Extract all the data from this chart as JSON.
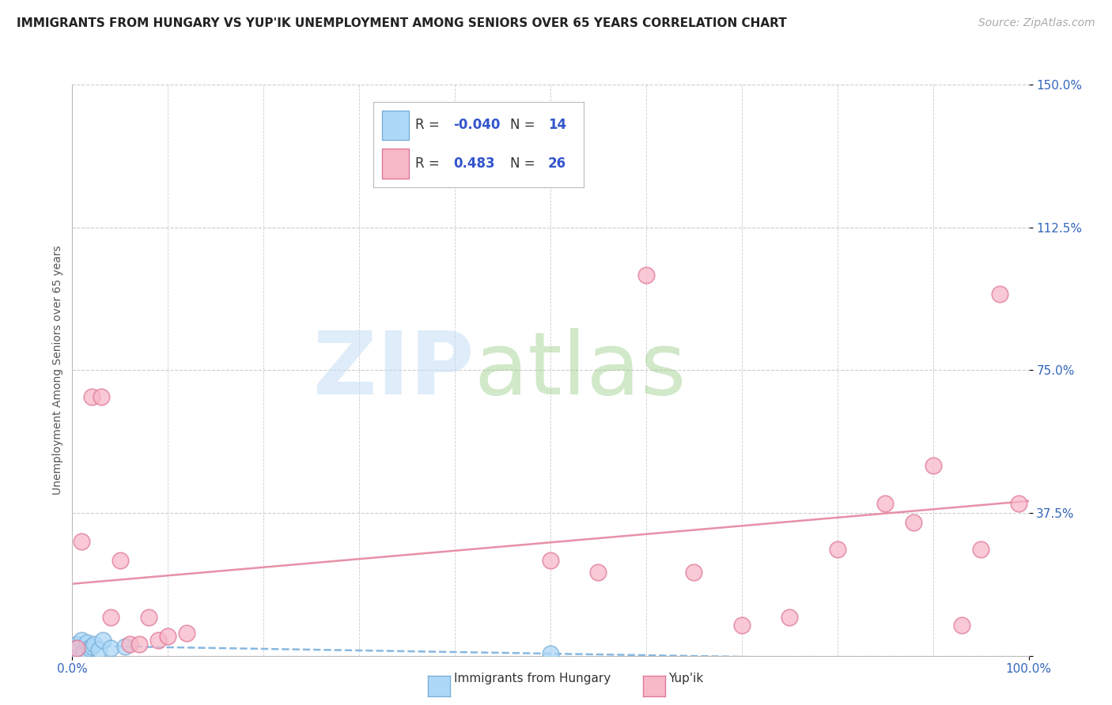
{
  "title": "IMMIGRANTS FROM HUNGARY VS YUP'IK UNEMPLOYMENT AMONG SENIORS OVER 65 YEARS CORRELATION CHART",
  "source_text": "Source: ZipAtlas.com",
  "ylabel": "Unemployment Among Seniors over 65 years",
  "xlim": [
    0,
    100
  ],
  "ylim": [
    0,
    150
  ],
  "yticks": [
    0,
    37.5,
    75.0,
    112.5,
    150.0
  ],
  "yticklabels": [
    "",
    "37.5%",
    "75.0%",
    "112.5%",
    "150.0%"
  ],
  "blue_R": -0.04,
  "blue_N": 14,
  "pink_R": 0.483,
  "pink_N": 26,
  "blue_face": "#add8f7",
  "blue_edge": "#7ab0d8",
  "pink_face": "#f7b8c8",
  "pink_edge": "#e07898",
  "blue_line_color": "#88b8e0",
  "pink_line_color": "#e890a8",
  "blue_x": [
    0.3,
    0.5,
    0.7,
    1.0,
    1.2,
    1.5,
    1.8,
    2.0,
    2.3,
    2.8,
    3.2,
    4.0,
    5.5,
    50.0
  ],
  "blue_y": [
    1.5,
    3.0,
    2.5,
    4.0,
    1.0,
    3.5,
    2.0,
    2.5,
    3.0,
    1.5,
    4.0,
    2.0,
    2.5,
    0.5
  ],
  "pink_x": [
    0.5,
    1.0,
    2.0,
    3.0,
    4.0,
    5.0,
    6.0,
    7.0,
    8.0,
    9.0,
    10.0,
    12.0,
    50.0,
    55.0,
    60.0,
    65.0,
    70.0,
    75.0,
    80.0,
    85.0,
    88.0,
    90.0,
    93.0,
    95.0,
    97.0,
    99.0
  ],
  "pink_y": [
    2.0,
    30.0,
    68.0,
    68.0,
    10.0,
    25.0,
    3.0,
    3.0,
    10.0,
    4.0,
    5.0,
    6.0,
    25.0,
    22.0,
    100.0,
    22.0,
    8.0,
    10.0,
    28.0,
    40.0,
    35.0,
    50.0,
    8.0,
    28.0,
    95.0,
    40.0
  ],
  "title_fontsize": 11,
  "source_fontsize": 10,
  "ylabel_fontsize": 10,
  "tick_fontsize": 11,
  "legend_fontsize": 12,
  "watermark_fontsize_zip": 80,
  "watermark_fontsize_atlas": 80
}
